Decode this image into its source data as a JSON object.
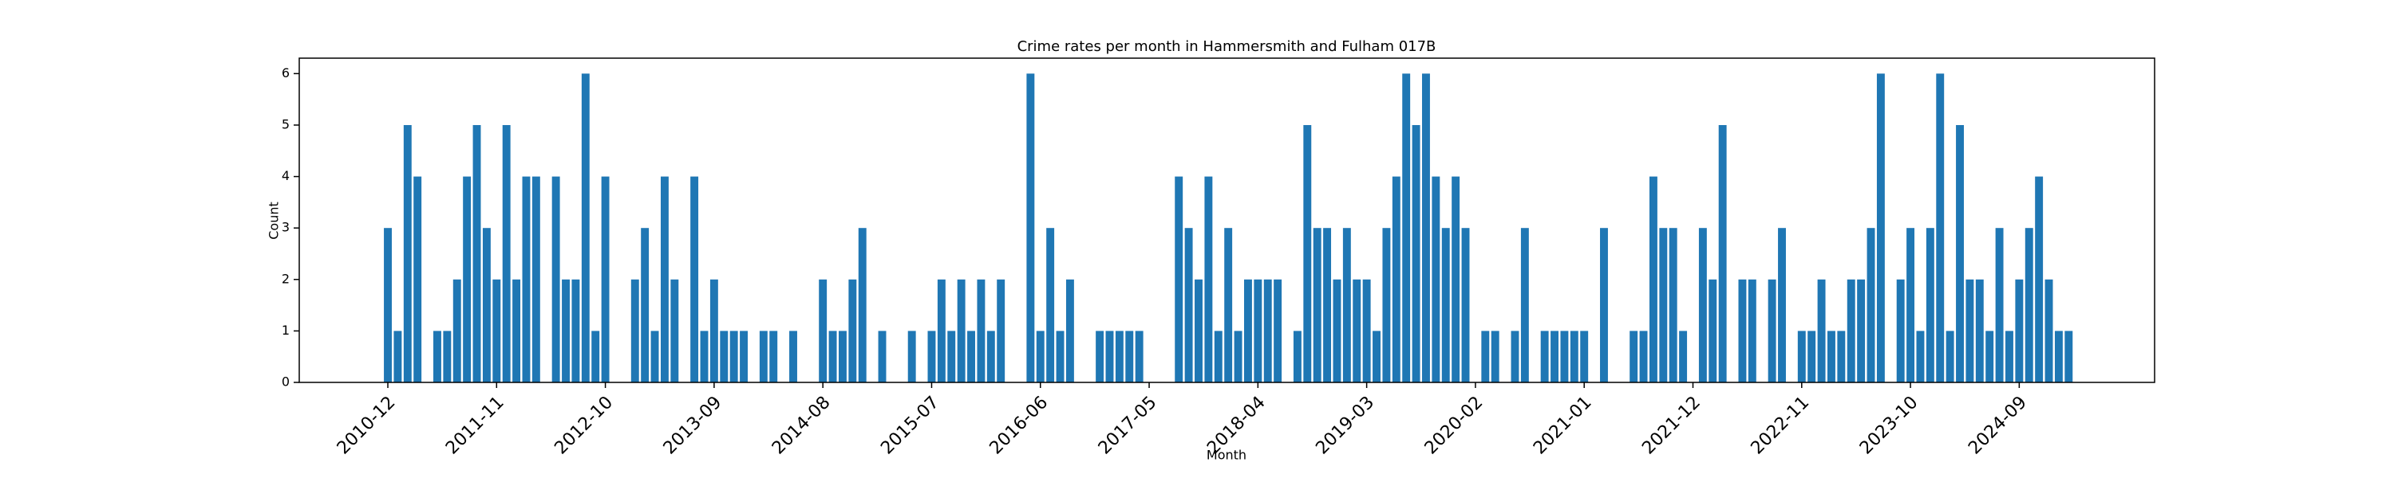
{
  "chart_data": {
    "type": "bar",
    "title": "Crime rates per month in Hammersmith and Fulham 017B",
    "x_label": "Month",
    "y_label": "Count",
    "categories": [
      "2010-12",
      null,
      null,
      null,
      null,
      null,
      null,
      null,
      null,
      null,
      null,
      "2011-11",
      null,
      null,
      null,
      null,
      null,
      null,
      null,
      null,
      null,
      null,
      "2012-10",
      null,
      null,
      null,
      null,
      null,
      null,
      null,
      null,
      null,
      null,
      "2013-09",
      null,
      null,
      null,
      null,
      null,
      null,
      null,
      null,
      null,
      null,
      "2014-08",
      null,
      null,
      null,
      null,
      null,
      null,
      null,
      null,
      null,
      null,
      "2015-07",
      null,
      null,
      null,
      null,
      null,
      null,
      null,
      null,
      null,
      null,
      "2016-06",
      null,
      null,
      null,
      null,
      null,
      null,
      null,
      null,
      null,
      null,
      "2017-05",
      null,
      null,
      null,
      null,
      null,
      null,
      null,
      null,
      null,
      null,
      "2018-04",
      null,
      null,
      null,
      null,
      null,
      null,
      null,
      null,
      null,
      null,
      "2019-03",
      null,
      null,
      null,
      null,
      null,
      null,
      null,
      null,
      null,
      null,
      "2020-02",
      null,
      null,
      null,
      null,
      null,
      null,
      null,
      null,
      null,
      null,
      "2021-01",
      null,
      null,
      null,
      null,
      null,
      null,
      null,
      null,
      null,
      null,
      "2021-12",
      null,
      null,
      null,
      null,
      null,
      null,
      null,
      null,
      null,
      null,
      "2022-11",
      null,
      null,
      null,
      null,
      null,
      null,
      null,
      null,
      null,
      null,
      "2023-10",
      null,
      null,
      null,
      null,
      null,
      null,
      null,
      null,
      null,
      null,
      "2024-09",
      null,
      null,
      null,
      null,
      null
    ],
    "values": [
      3,
      1,
      5,
      4,
      0,
      1,
      1,
      2,
      4,
      5,
      3,
      2,
      5,
      2,
      4,
      4,
      0,
      4,
      2,
      2,
      6,
      1,
      4,
      0,
      0,
      2,
      3,
      1,
      4,
      2,
      0,
      4,
      1,
      2,
      1,
      1,
      1,
      0,
      1,
      1,
      0,
      1,
      0,
      0,
      2,
      1,
      1,
      2,
      3,
      0,
      1,
      0,
      0,
      1,
      0,
      1,
      2,
      1,
      2,
      1,
      2,
      1,
      2,
      0,
      0,
      6,
      1,
      3,
      1,
      2,
      0,
      0,
      1,
      1,
      1,
      1,
      1,
      0,
      0,
      0,
      4,
      3,
      2,
      4,
      1,
      3,
      1,
      2,
      2,
      2,
      2,
      0,
      1,
      5,
      3,
      3,
      2,
      3,
      2,
      2,
      1,
      3,
      4,
      6,
      5,
      6,
      4,
      3,
      4,
      3,
      0,
      1,
      1,
      0,
      1,
      3,
      0,
      1,
      1,
      1,
      1,
      1,
      0,
      3,
      0,
      0,
      1,
      1,
      4,
      3,
      3,
      1,
      0,
      3,
      2,
      5,
      0,
      2,
      2,
      0,
      2,
      3,
      0,
      1,
      1,
      2,
      1,
      1,
      2,
      2,
      3,
      6,
      0,
      2,
      3,
      1,
      3,
      6,
      1,
      5,
      2,
      2,
      1,
      3,
      1,
      2,
      3,
      4,
      2,
      1,
      1
    ],
    "color": "#1f77b4",
    "ylim": [
      0,
      6.3
    ],
    "yticks": [
      0,
      1,
      2,
      3,
      4,
      5,
      6
    ],
    "grid": false
  }
}
